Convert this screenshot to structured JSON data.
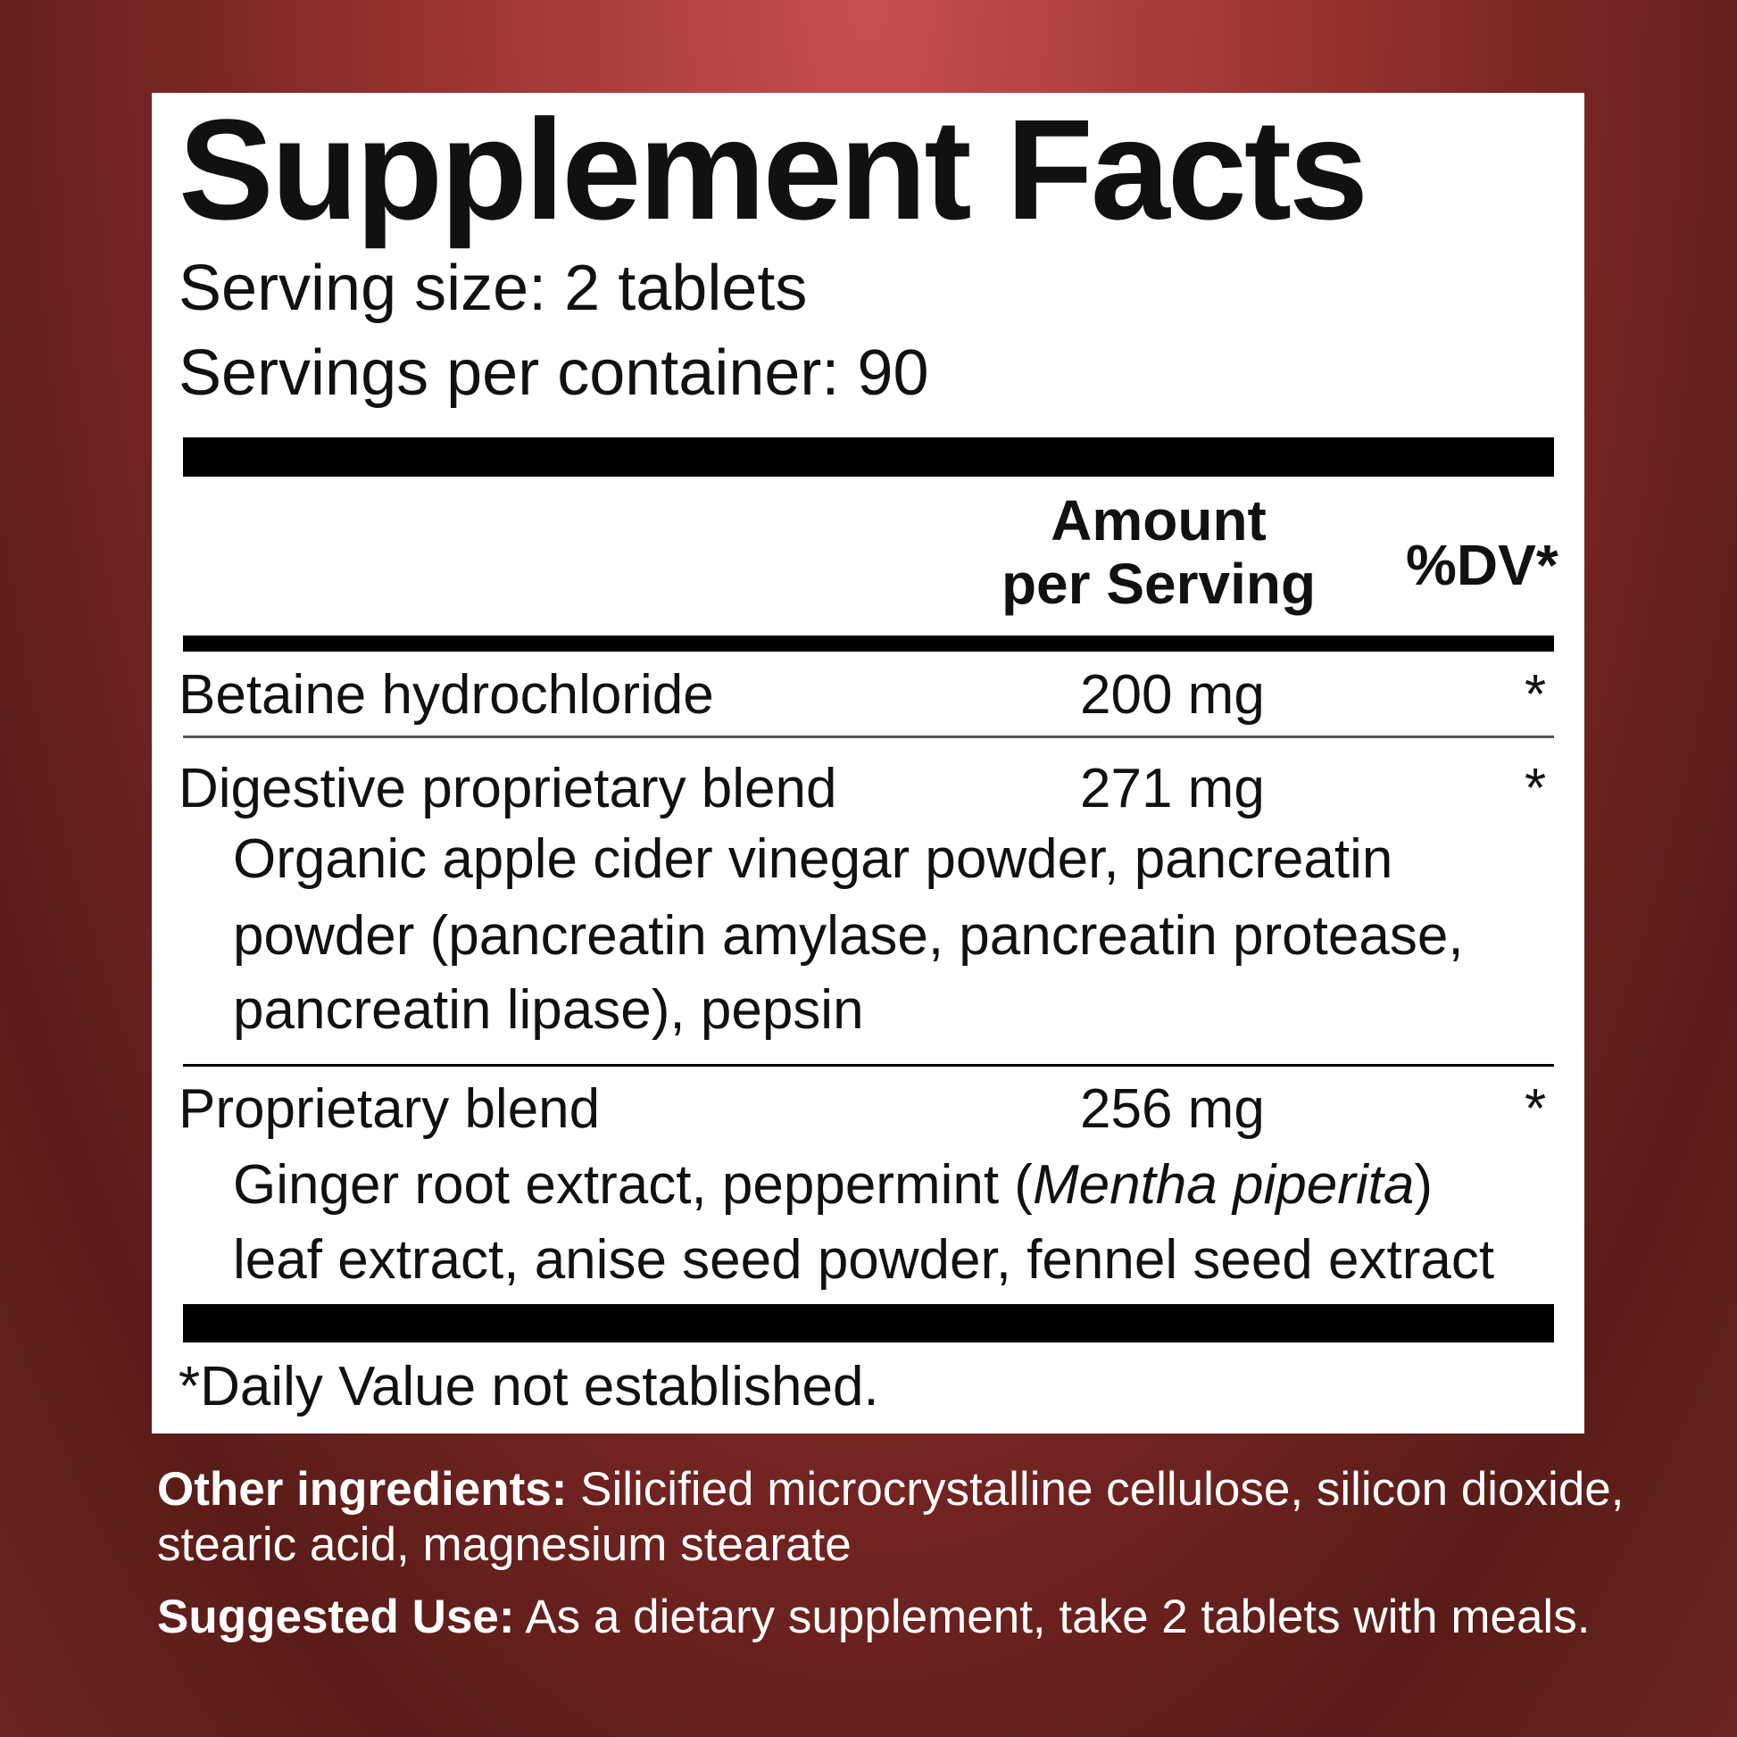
{
  "panel": {
    "title": "Supplement Facts",
    "serving_size": "Serving size: 2 tablets",
    "servings_per_container": "Servings per container: 90",
    "header": {
      "amount_line1": "Amount",
      "amount_line2": "per Serving",
      "dv": "%DV*"
    },
    "rows": [
      {
        "name": "Betaine hydrochloride",
        "amount": "200 mg",
        "dv": "*"
      },
      {
        "name": "Digestive proprietary blend",
        "amount": "271 mg",
        "dv": "*",
        "sub": [
          "Organic apple cider vinegar powder, pancreatin",
          "powder (pancreatin amylase, pancreatin protease,",
          "pancreatin lipase), pepsin"
        ]
      },
      {
        "name": "Proprietary blend",
        "amount": "256 mg",
        "dv": "*",
        "sub_pre": "Ginger root extract, peppermint (",
        "sub_italic": "Mentha piperita",
        "sub_post": ")",
        "sub2": "leaf extract, anise seed powder, fennel seed extract"
      }
    ],
    "footnote": "*Daily Value not established."
  },
  "other_ingredients": {
    "label": "Other ingredients:",
    "line1": " Silicified microcrystalline cellulose, silicon dioxide,",
    "line2": "stearic acid, magnesium stearate"
  },
  "suggested_use": {
    "label": "Suggested Use:",
    "text": " As a dietary supplement, take 2 tablets with meals."
  }
}
